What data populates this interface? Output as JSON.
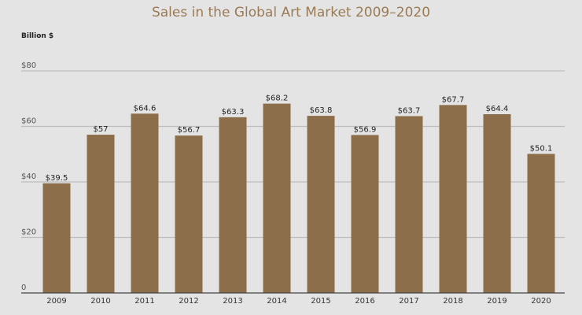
{
  "chart_data": {
    "type": "bar",
    "title": "Sales in the Global Art Market 2009–2020",
    "ylabel": "Billion $",
    "xlabel": "",
    "categories": [
      "2009",
      "2010",
      "2011",
      "2012",
      "2013",
      "2014",
      "2015",
      "2016",
      "2017",
      "2018",
      "2019",
      "2020"
    ],
    "values": [
      39.5,
      57,
      64.6,
      56.7,
      63.3,
      68.2,
      63.8,
      56.9,
      63.7,
      67.7,
      64.4,
      50.1
    ],
    "data_labels": [
      "$39.5",
      "$57",
      "$64.6",
      "$56.7",
      "$63.3",
      "$68.2",
      "$63.8",
      "$56.9",
      "$63.7",
      "$67.7",
      "$64.4",
      "$50.1"
    ],
    "yticks": [
      0,
      20,
      40,
      60,
      80
    ],
    "ytick_labels": [
      "0",
      "$20",
      "$40",
      "$60",
      "$80"
    ],
    "ylim": [
      0,
      80
    ],
    "grid": true,
    "colors": {
      "bar": "#8d6e4a",
      "title": "#9a7b55",
      "grid": "#bdbdbd",
      "axis": "#444444"
    }
  }
}
